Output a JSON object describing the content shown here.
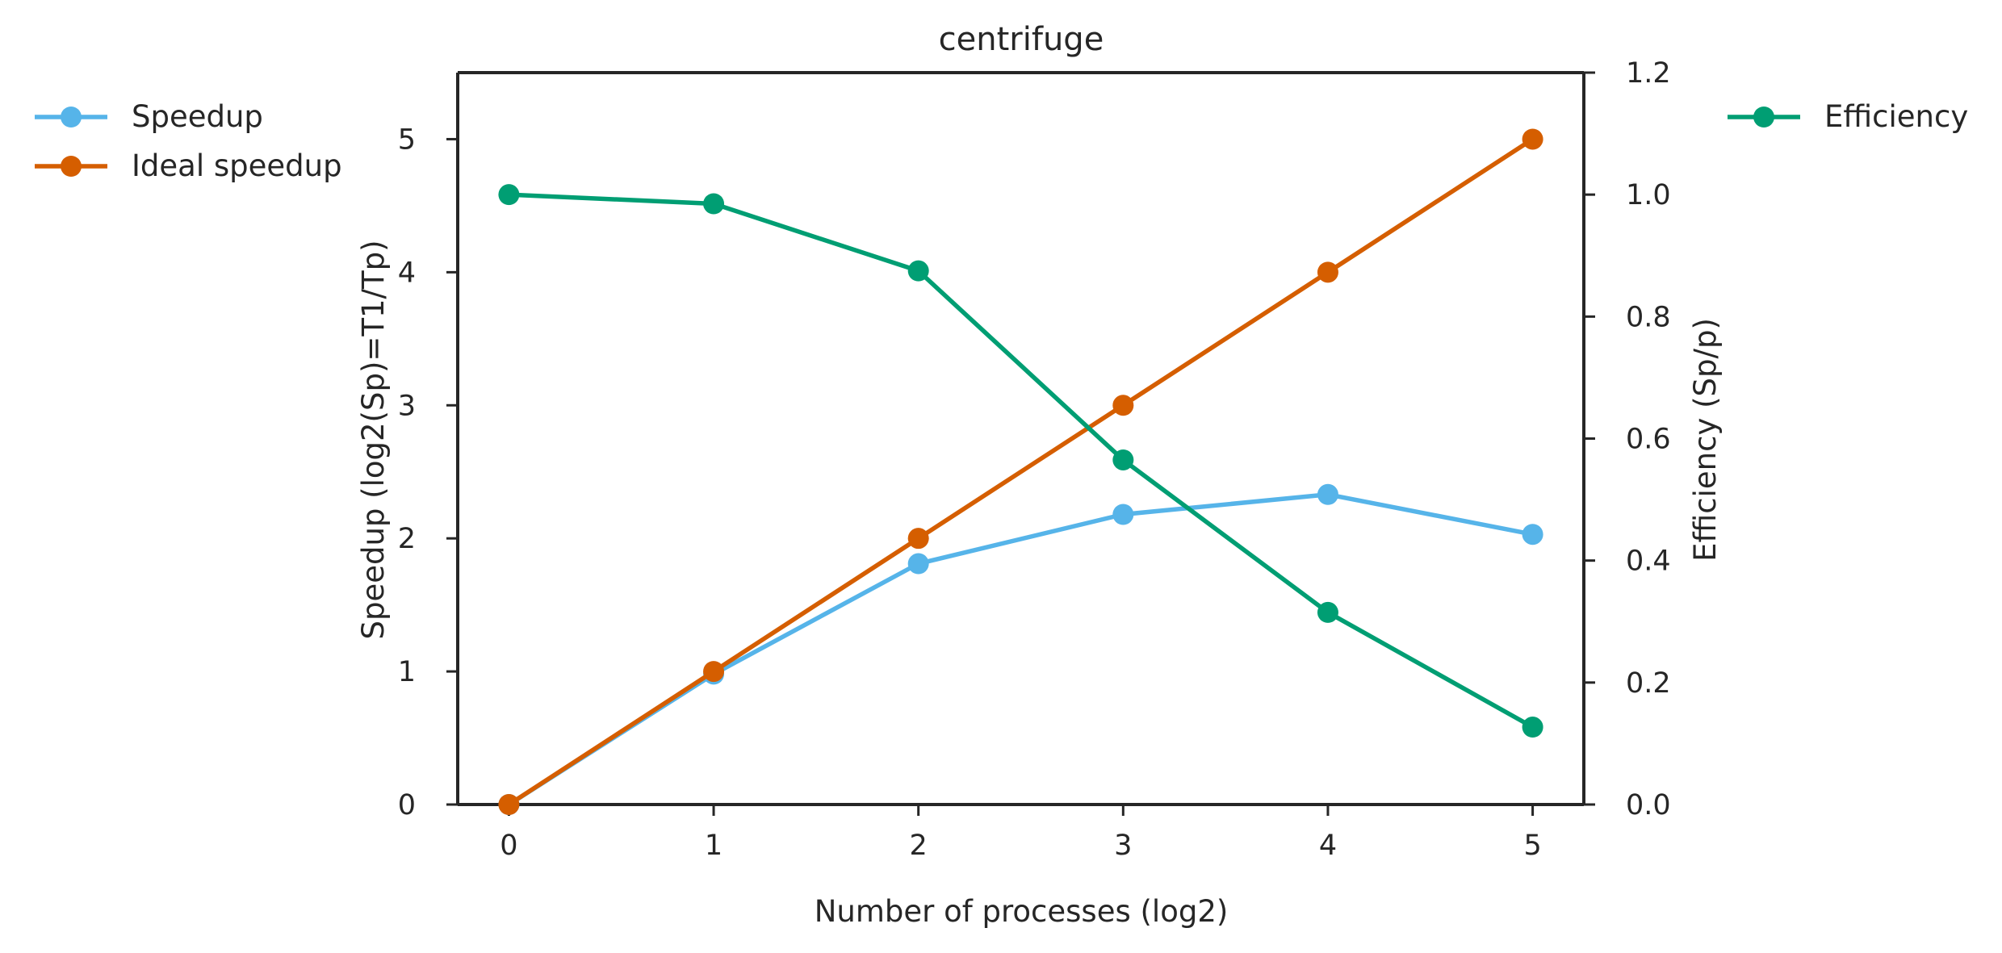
{
  "chart_data": {
    "type": "line",
    "title": "centrifuge",
    "xlabel": "Number of processes (log2)",
    "ylabel": "Speedup (log2(Sp)=T1/Tp)",
    "y2label": "Efficiency (Sp/p)",
    "x": [
      0,
      1,
      2,
      3,
      4,
      5
    ],
    "xlim": [
      -0.25,
      5.25
    ],
    "ylim": [
      0,
      5.5
    ],
    "y2lim": [
      0,
      1.2
    ],
    "xticks": [
      "0",
      "1",
      "2",
      "3",
      "4",
      "5"
    ],
    "yticks": [
      "0",
      "1",
      "2",
      "3",
      "4",
      "5"
    ],
    "y2ticks": [
      "0.0",
      "0.2",
      "0.4",
      "0.6",
      "0.8",
      "1.0",
      "1.2"
    ],
    "grid": false,
    "series": [
      {
        "name": "Speedup",
        "axis": "left",
        "color": "#56B4E9",
        "values": [
          0,
          0.98,
          1.81,
          2.18,
          2.33,
          2.03
        ]
      },
      {
        "name": "Ideal speedup",
        "axis": "left",
        "color": "#D55E00",
        "values": [
          0,
          1,
          2,
          3,
          4,
          5
        ]
      },
      {
        "name": "Efficiency",
        "axis": "right",
        "color": "#009E73",
        "values": [
          1.0,
          0.985,
          0.875,
          0.565,
          0.315,
          0.127
        ]
      }
    ],
    "legend": {
      "left": {
        "placement": "outside-left-top",
        "items": [
          "Speedup",
          "Ideal speedup"
        ]
      },
      "right": {
        "placement": "outside-right-top",
        "items": [
          "Efficiency"
        ]
      }
    }
  }
}
